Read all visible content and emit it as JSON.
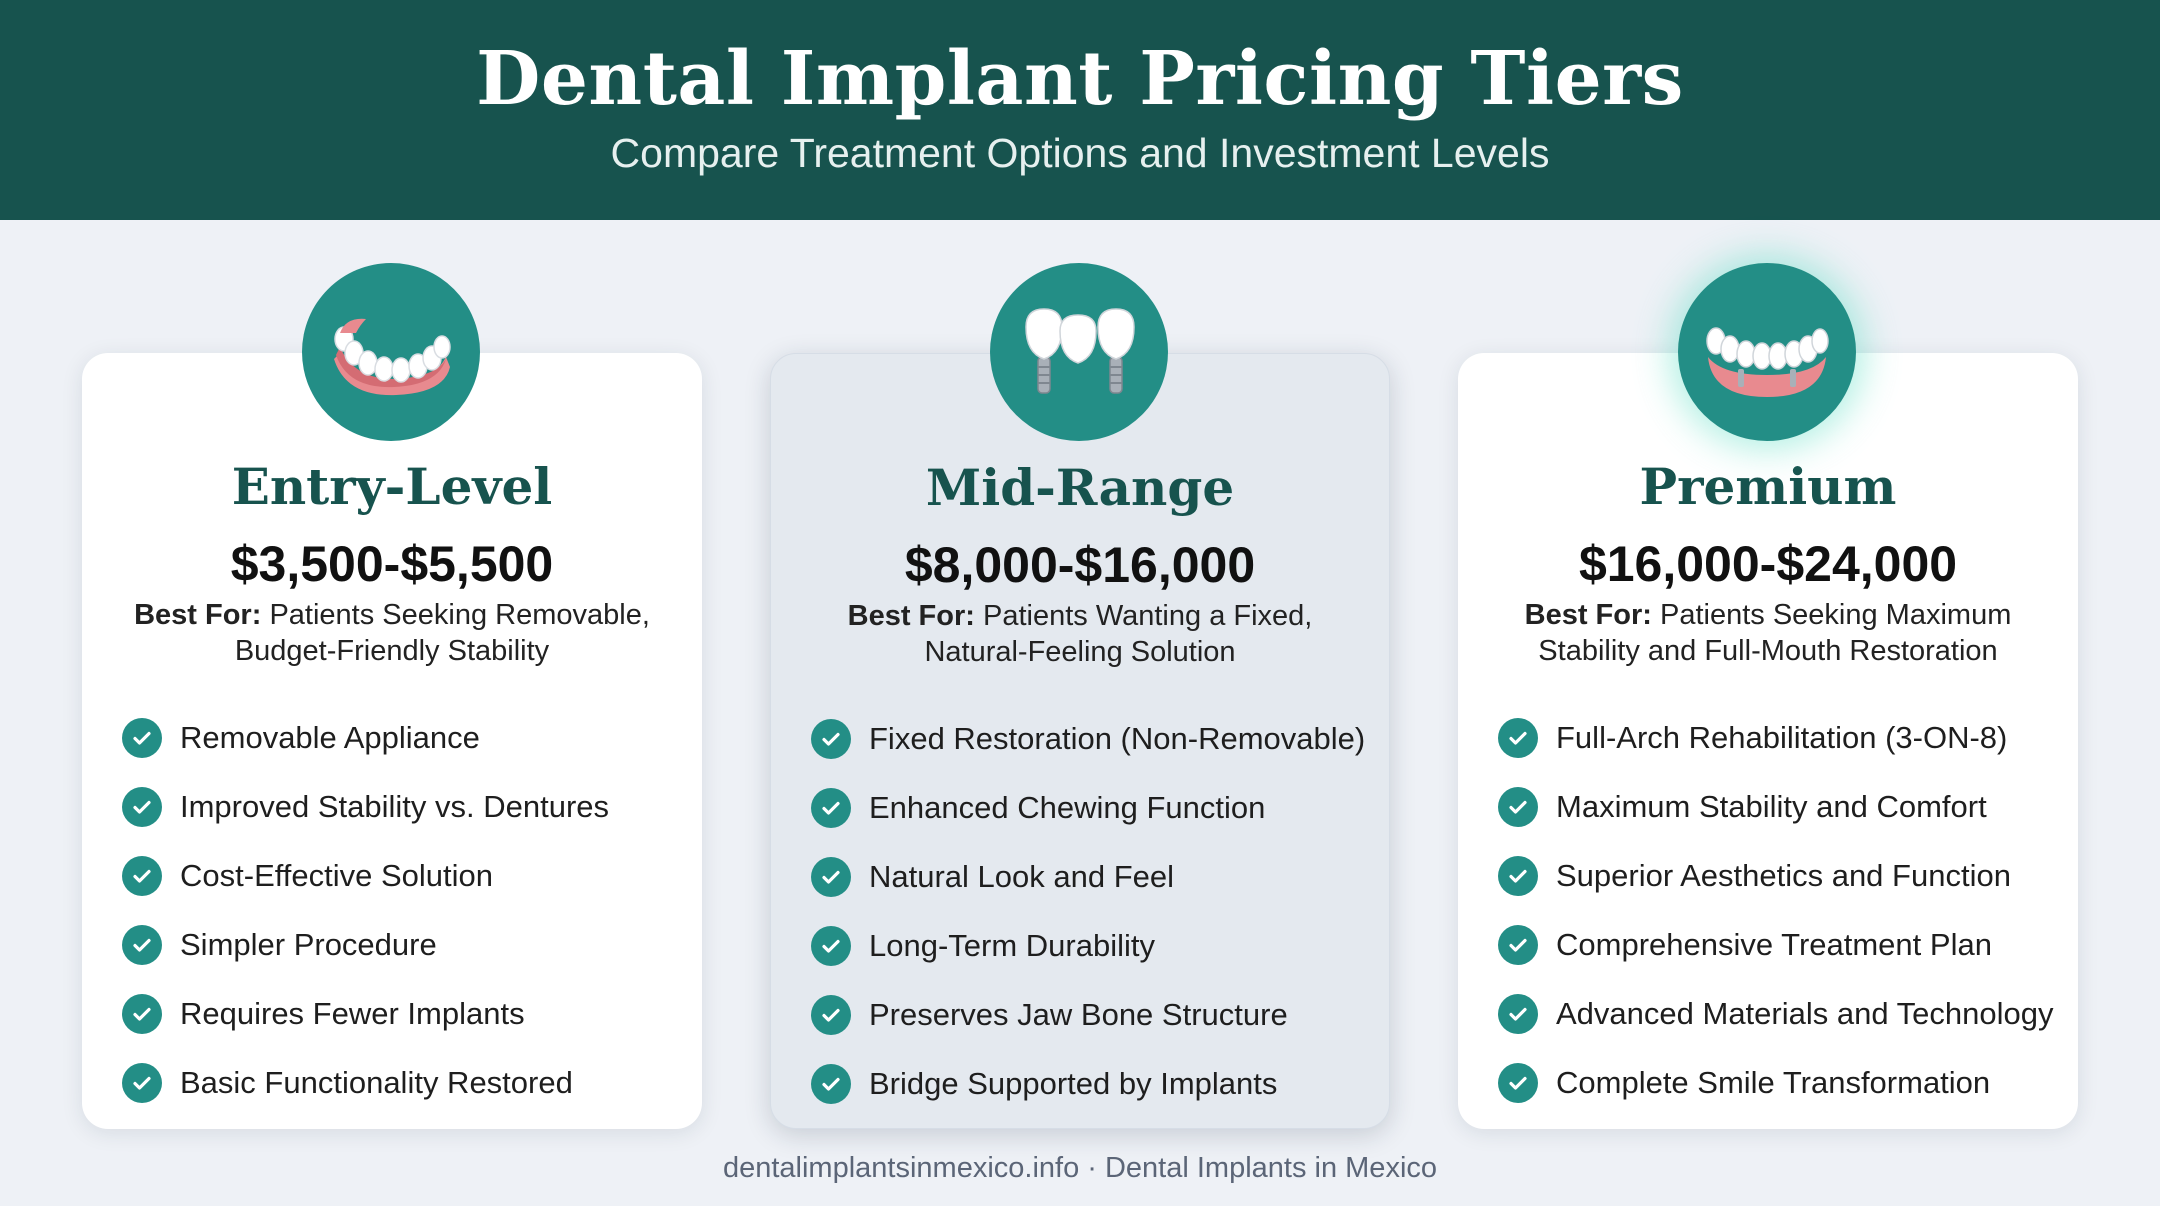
{
  "header": {
    "title": "Dental Implant Pricing Tiers",
    "subtitle": "Compare Treatment Options and Investment Levels"
  },
  "colors": {
    "header_bg": "#17534e",
    "accent": "#238e86",
    "page_bg": "#eef1f6"
  },
  "tiers": [
    {
      "name": "Entry-Level",
      "price": "$3,500-$5,500",
      "best_for_label": "Best For:",
      "best_for_line1": "Patients Seeking Removable,",
      "best_for_line2": "Budget-Friendly Stability",
      "icon": "denture-icon",
      "features": [
        "Removable Appliance",
        "Improved Stability vs. Dentures",
        "Cost-Effective Solution",
        "Simpler Procedure",
        "Requires Fewer Implants",
        "Basic Functionality Restored"
      ]
    },
    {
      "name": "Mid-Range",
      "price": "$8,000-$16,000",
      "best_for_label": "Best For:",
      "best_for_line1": "Patients Wanting a Fixed,",
      "best_for_line2": "Natural-Feeling Solution",
      "icon": "implant-bridge-icon",
      "features": [
        "Fixed Restoration (Non-Removable)",
        "Enhanced Chewing Function",
        "Natural Look and Feel",
        "Long-Term Durability",
        "Preserves Jaw Bone Structure",
        "Bridge Supported by Implants"
      ]
    },
    {
      "name": "Premium",
      "price": "$16,000-$24,000",
      "best_for_label": "Best For:",
      "best_for_line1": "Patients Seeking Maximum",
      "best_for_line2": "Stability and Full-Mouth Restoration",
      "icon": "full-arch-icon",
      "features": [
        "Full-Arch Rehabilitation (3-ON-8)",
        "Maximum Stability and Comfort",
        "Superior Aesthetics and Function",
        "Comprehensive Treatment Plan",
        "Advanced Materials and Technology",
        "Complete Smile Transformation"
      ]
    }
  ],
  "footer": {
    "text": "dentalimplantsinmexico.info · Dental Implants in Mexico"
  }
}
